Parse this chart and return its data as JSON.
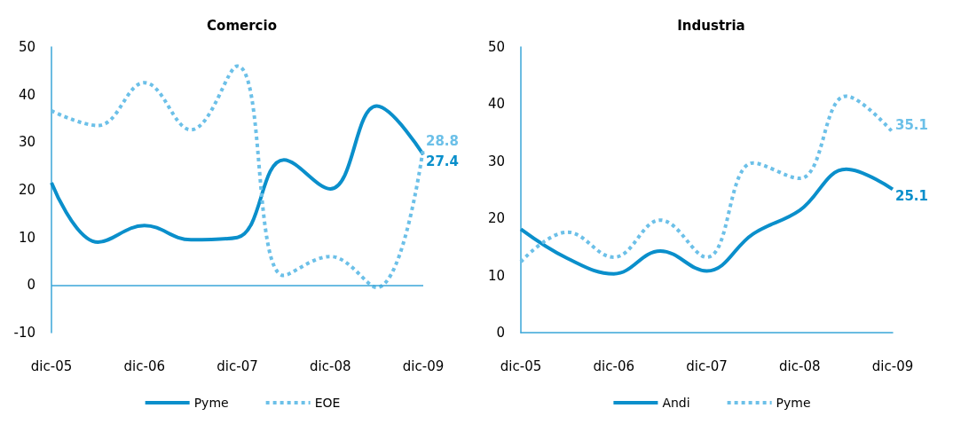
{
  "chart_data": [
    {
      "type": "line",
      "title": "Comercio",
      "categories": [
        "dic-05",
        null,
        "dic-06",
        null,
        "dic-07",
        null,
        "dic-08",
        null,
        "dic-09"
      ],
      "ylim": [
        -10,
        50
      ],
      "yticks": [
        -10,
        0,
        10,
        20,
        30,
        40,
        50
      ],
      "ref_lines": [
        {
          "axis": "y",
          "value": 0,
          "color": "#3aa6d8"
        }
      ],
      "grid": false,
      "legend": "bottom",
      "marker": "none",
      "series": [
        {
          "name": "Pyme",
          "color": "#0a8fcb",
          "line_style": "solid",
          "values": [
            21.5,
            9,
            12.5,
            9.5,
            10,
            26.3,
            20.2,
            37.6,
            27.4
          ],
          "value_labels": [
            null,
            null,
            null,
            null,
            null,
            null,
            null,
            null,
            "27.4"
          ]
        },
        {
          "name": "EOE",
          "color": "#6cc0e8",
          "line_style": "dotted",
          "values": [
            36.6,
            33.5,
            42.5,
            32.6,
            46,
            2,
            6,
            -0.5,
            28.8
          ],
          "value_labels": [
            null,
            null,
            null,
            null,
            null,
            null,
            null,
            null,
            "28.8"
          ]
        }
      ]
    },
    {
      "type": "line",
      "title": "Industria",
      "categories": [
        "dic-05",
        null,
        "dic-06",
        null,
        "dic-07",
        null,
        "dic-08",
        null,
        "dic-09"
      ],
      "ylim": [
        0,
        50
      ],
      "yticks": [
        0,
        10,
        20,
        30,
        40,
        50
      ],
      "grid": false,
      "legend": "bottom",
      "marker": "none",
      "series": [
        {
          "name": "Andi",
          "color": "#0a8fcb",
          "line_style": "solid",
          "values": [
            18.1,
            13,
            10.3,
            14.3,
            10.8,
            17.3,
            21.4,
            28.6,
            25.1
          ],
          "value_labels": [
            null,
            null,
            null,
            null,
            null,
            null,
            null,
            null,
            "25.1"
          ]
        },
        {
          "name": "Pyme",
          "color": "#6cc0e8",
          "line_style": "dotted",
          "values": [
            12.4,
            17.6,
            13.2,
            19.7,
            13.2,
            29.7,
            27,
            41.4,
            35.1
          ],
          "value_labels": [
            null,
            null,
            null,
            null,
            null,
            null,
            null,
            null,
            "35.1"
          ]
        }
      ]
    }
  ]
}
